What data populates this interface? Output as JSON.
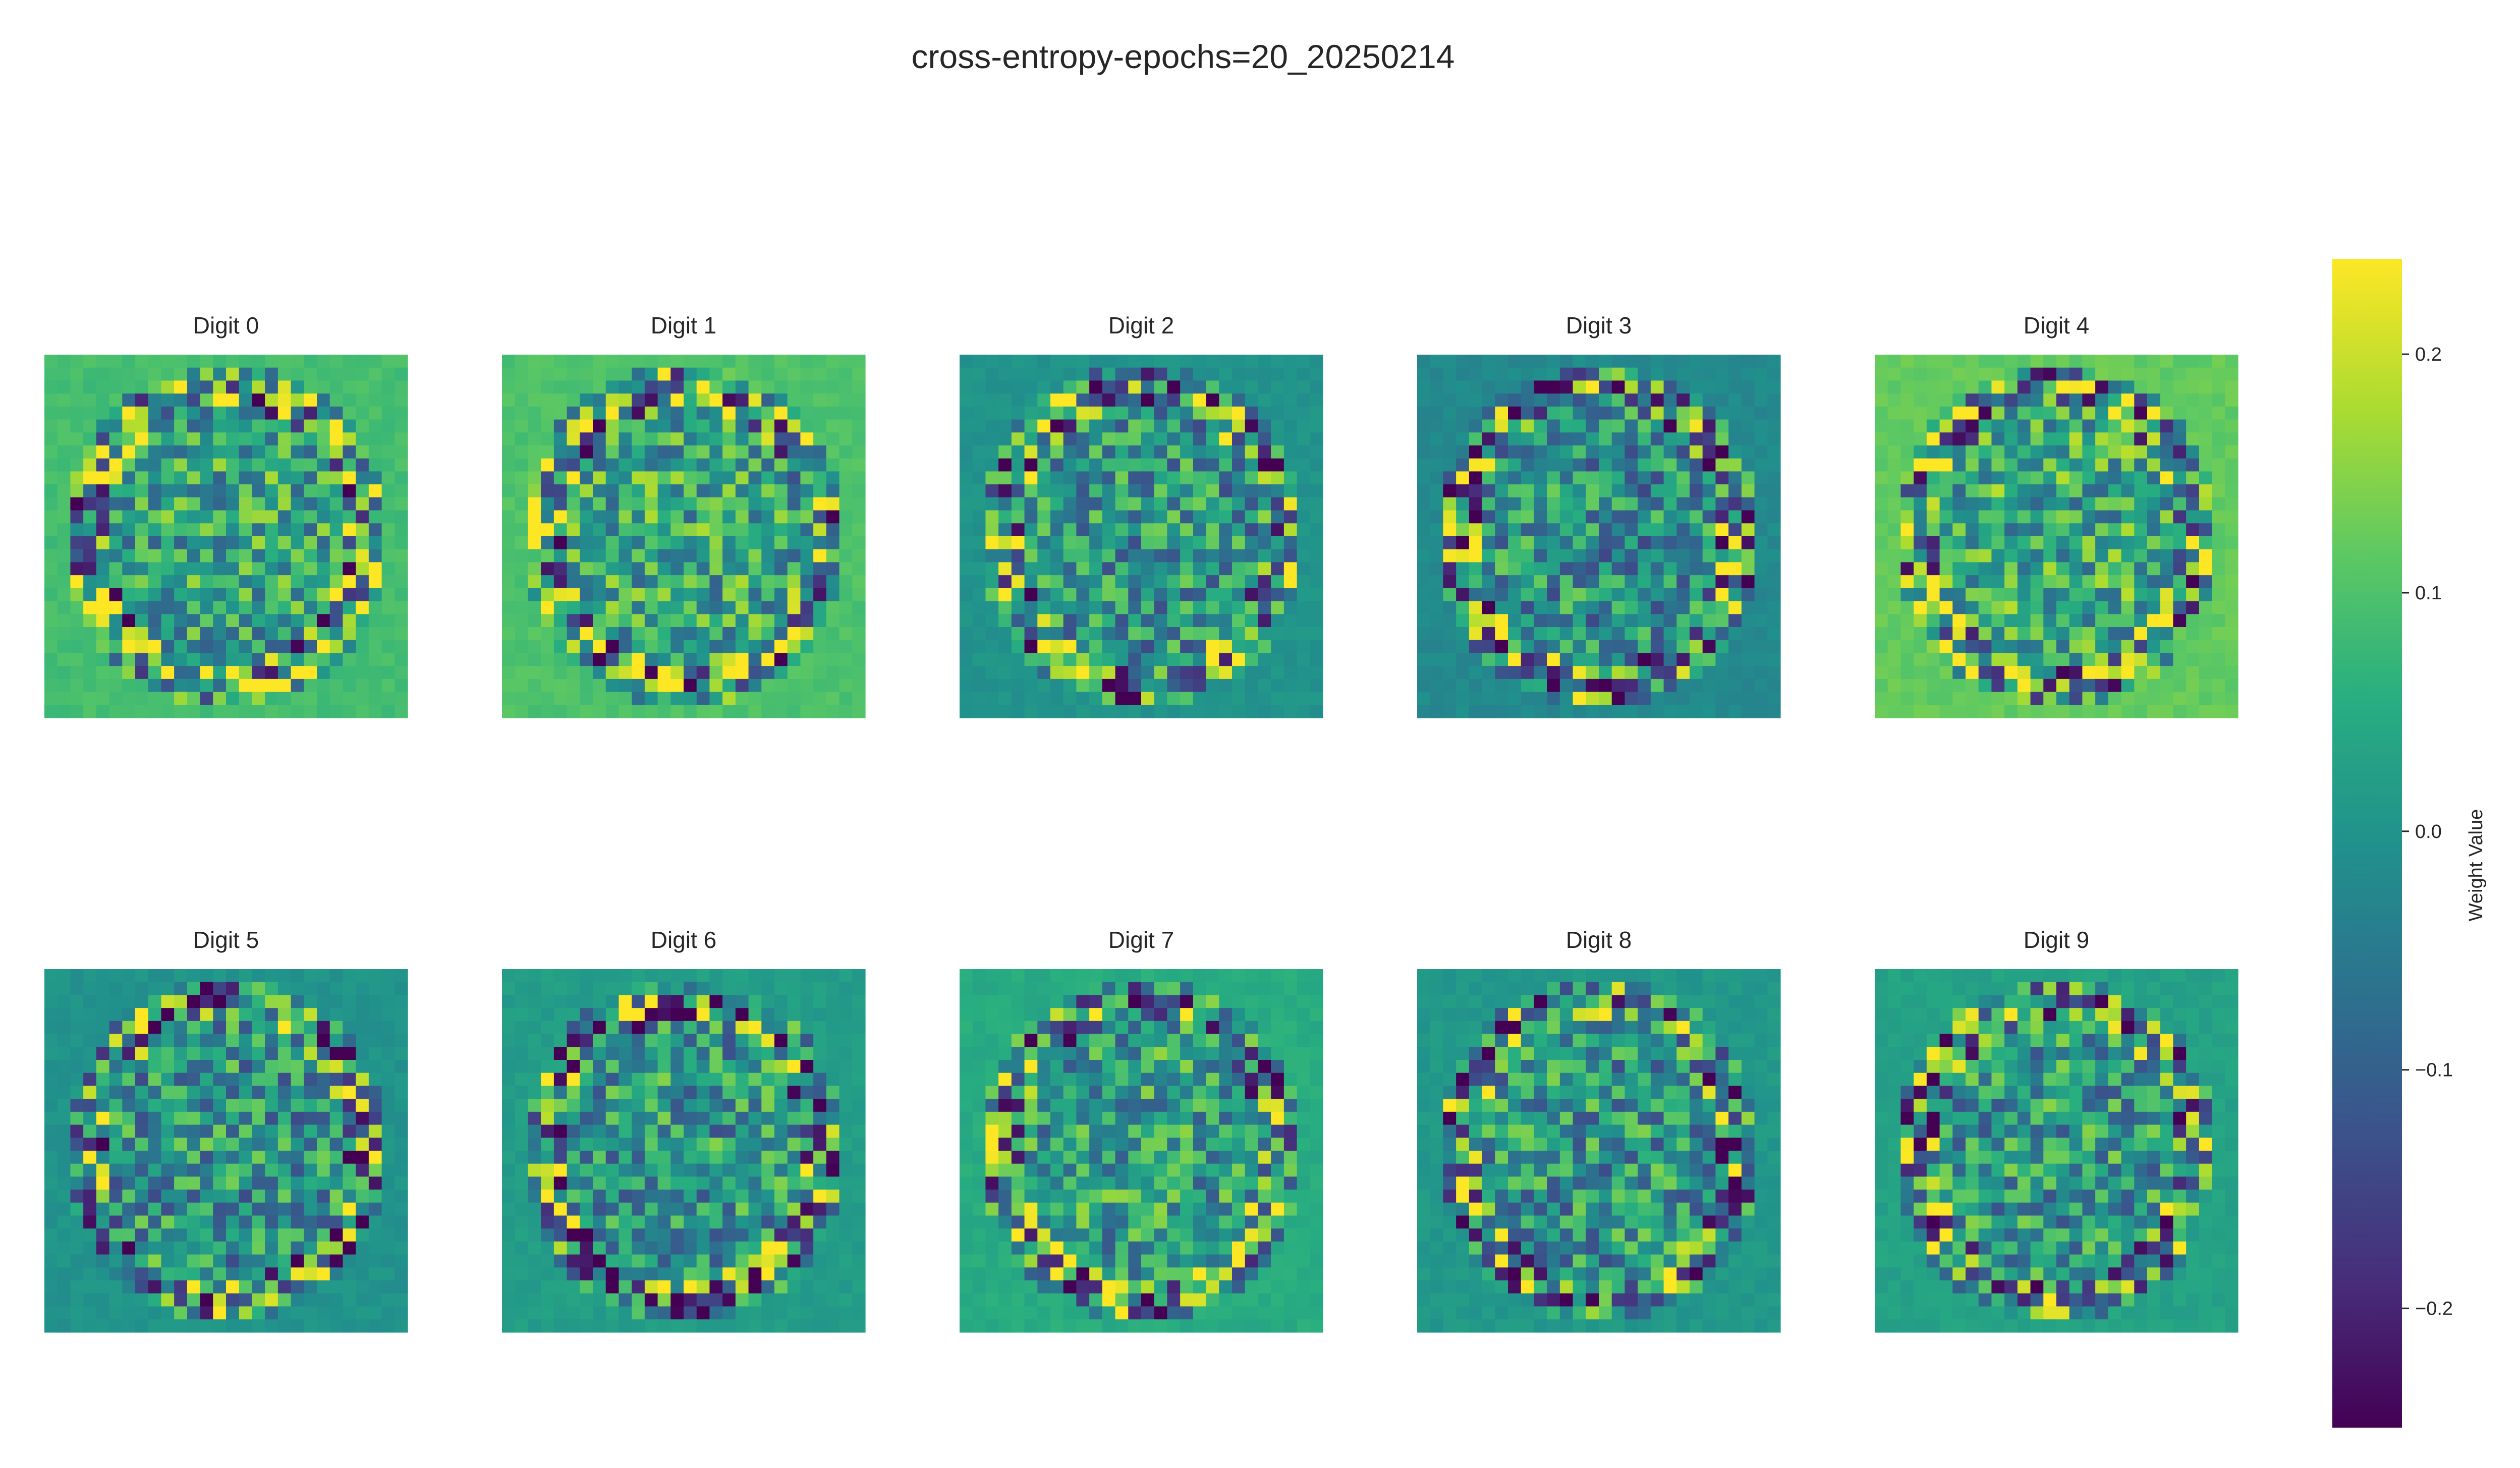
{
  "chart_data": {
    "type": "heatmap",
    "title": "cross-entropy-epochs=20_20250214",
    "colormap": "viridis",
    "grid": false,
    "grid_size": [
      28,
      28
    ],
    "value_range": [
      -0.25,
      0.24
    ],
    "panels": [
      {
        "digit": 0,
        "title": "Digit 0"
      },
      {
        "digit": 1,
        "title": "Digit 1"
      },
      {
        "digit": 2,
        "title": "Digit 2"
      },
      {
        "digit": 3,
        "title": "Digit 3"
      },
      {
        "digit": 4,
        "title": "Digit 4"
      },
      {
        "digit": 5,
        "title": "Digit 5"
      },
      {
        "digit": 6,
        "title": "Digit 6"
      },
      {
        "digit": 7,
        "title": "Digit 7"
      },
      {
        "digit": 8,
        "title": "Digit 8"
      },
      {
        "digit": 9,
        "title": "Digit 9"
      }
    ],
    "colorbar": {
      "label": "Weight Value",
      "placement": "right",
      "ticks": [
        0.2,
        0.1,
        0.0,
        -0.1,
        -0.2
      ],
      "tick_labels": [
        "0.2",
        "0.1",
        "0.0",
        "−0.1",
        "−0.2"
      ]
    }
  }
}
